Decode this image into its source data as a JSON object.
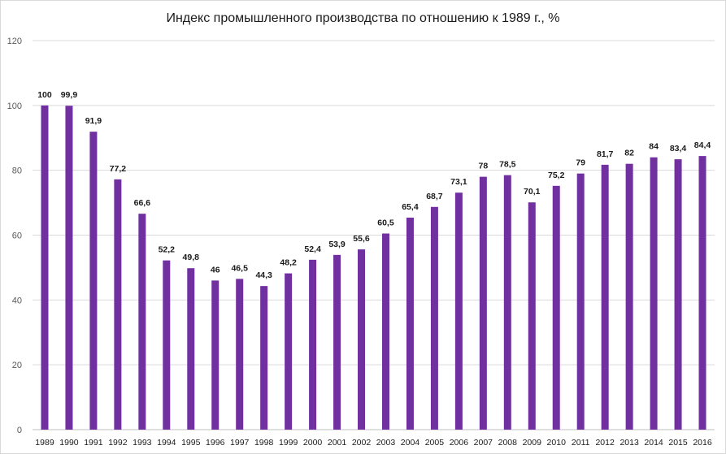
{
  "chart_data": {
    "type": "bar",
    "title": "Индекс промышленного производства по отношению к 1989 г., %",
    "xlabel": "",
    "ylabel": "",
    "ylim": [
      0,
      120
    ],
    "yticks": [
      0,
      20,
      40,
      60,
      80,
      100,
      120
    ],
    "grid": true,
    "legend": "none",
    "bar_color": "#7030a0",
    "categories": [
      "1989",
      "1990",
      "1991",
      "1992",
      "1993",
      "1994",
      "1995",
      "1996",
      "1997",
      "1998",
      "1999",
      "2000",
      "2001",
      "2002",
      "2003",
      "2004",
      "2005",
      "2006",
      "2007",
      "2008",
      "2009",
      "2010",
      "2011",
      "2012",
      "2013",
      "2014",
      "2015",
      "2016"
    ],
    "values": [
      100,
      99.9,
      91.9,
      77.2,
      66.6,
      52.2,
      49.8,
      46,
      46.5,
      44.3,
      48.2,
      52.4,
      53.9,
      55.6,
      60.5,
      65.4,
      68.7,
      73.1,
      78,
      78.5,
      70.1,
      75.2,
      79,
      81.7,
      82,
      84,
      83.4,
      84.4
    ],
    "data_labels": [
      "100",
      "99,9",
      "91,9",
      "77,2",
      "66,6",
      "52,2",
      "49,8",
      "46",
      "46,5",
      "44,3",
      "48,2",
      "52,4",
      "53,9",
      "55,6",
      "60,5",
      "65,4",
      "68,7",
      "73,1",
      "78",
      "78,5",
      "70,1",
      "75,2",
      "79",
      "81,7",
      "82",
      "84",
      "83,4",
      "84,4"
    ]
  }
}
